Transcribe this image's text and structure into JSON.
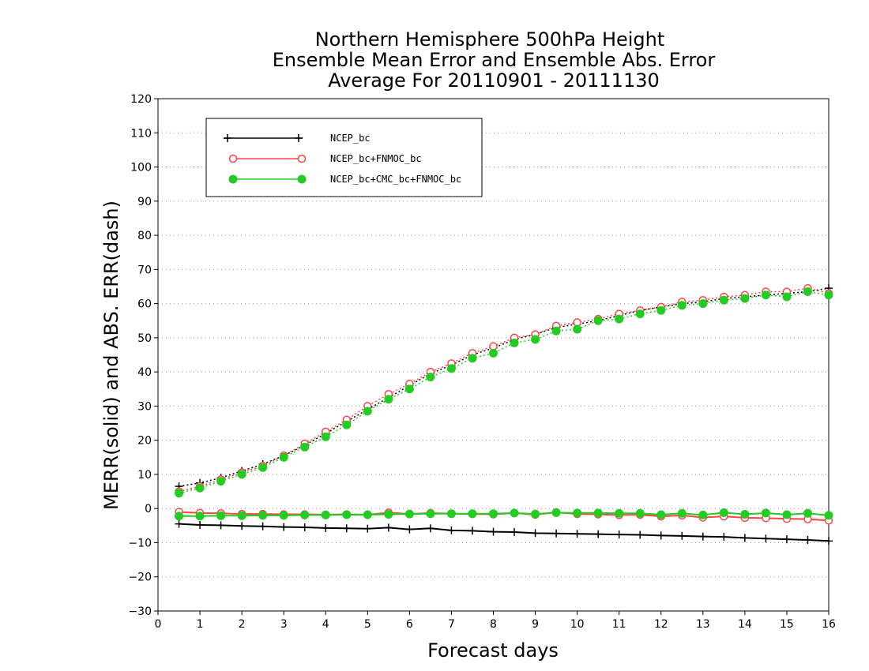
{
  "chart_data": {
    "type": "line",
    "title": [
      "Northern Hemisphere 500hPa Height",
      "Ensemble Mean Error and Ensemble Abs. Error",
      "Average For 20110901 - 20111130"
    ],
    "xlabel": "Forecast days",
    "ylabel": "MERR(solid) and ABS. ERR(dash)",
    "xlim": [
      0,
      16
    ],
    "ylim": [
      -30,
      120
    ],
    "xticks": [
      "0",
      "1",
      "2",
      "3",
      "4",
      "5",
      "6",
      "7",
      "8",
      "9",
      "10",
      "11",
      "12",
      "13",
      "14",
      "15",
      "16"
    ],
    "yticks": [
      "120",
      "110",
      "100",
      "90",
      "80",
      "70",
      "60",
      "50",
      "40",
      "30",
      "20",
      "10",
      "0",
      "−10",
      "−20",
      "−30"
    ],
    "grid": true,
    "legend_position": "top-left",
    "x": [
      0.5,
      1,
      1.5,
      2,
      2.5,
      3,
      3.5,
      4,
      4.5,
      5,
      5.5,
      6,
      6.5,
      7,
      7.5,
      8,
      8.5,
      9,
      9.5,
      10,
      10.5,
      11,
      11.5,
      12,
      12.5,
      13,
      13.5,
      14,
      14.5,
      15,
      15.5,
      16
    ],
    "series": [
      {
        "name": "NCEP_bc",
        "color": "#000000",
        "marker": "plus",
        "merr": [
          -4.5,
          -4.8,
          -4.9,
          -5.1,
          -5.2,
          -5.4,
          -5.5,
          -5.7,
          -5.8,
          -5.9,
          -5.6,
          -6.1,
          -5.8,
          -6.4,
          -6.5,
          -6.8,
          -6.9,
          -7.2,
          -7.3,
          -7.4,
          -7.5,
          -7.6,
          -7.7,
          -7.9,
          -8.0,
          -8.2,
          -8.3,
          -8.6,
          -8.8,
          -9.0,
          -9.2,
          -9.5
        ],
        "abs_err": [
          6.5,
          7.5,
          9.0,
          11.0,
          13.0,
          15.5,
          18.5,
          22.0,
          25.5,
          29.0,
          32.5,
          36.0,
          39.5,
          42.0,
          45.0,
          47.0,
          49.5,
          51.0,
          53.0,
          54.0,
          55.0,
          56.5,
          58.0,
          59.0,
          60.0,
          60.5,
          61.5,
          62.0,
          62.5,
          63.0,
          63.5,
          64.5
        ]
      },
      {
        "name": "NCEP_bc+FNMOC_bc",
        "color": "#ff4444",
        "marker": "open-circle",
        "merr": [
          -1.0,
          -1.3,
          -1.4,
          -1.6,
          -1.6,
          -1.7,
          -1.7,
          -1.8,
          -1.7,
          -1.8,
          -1.2,
          -1.6,
          -1.3,
          -1.5,
          -1.6,
          -1.7,
          -1.3,
          -1.8,
          -1.1,
          -1.6,
          -1.7,
          -1.9,
          -1.8,
          -2.3,
          -2.0,
          -2.6,
          -2.3,
          -2.7,
          -2.8,
          -3.0,
          -3.1,
          -3.5
        ],
        "abs_err": [
          5.0,
          6.5,
          8.5,
          10.5,
          12.5,
          15.5,
          19.0,
          22.5,
          26.0,
          30.0,
          33.5,
          36.5,
          40.0,
          42.5,
          45.5,
          47.5,
          50.0,
          51.0,
          53.5,
          54.5,
          55.5,
          57.0,
          58.0,
          59.0,
          60.5,
          61.0,
          62.0,
          62.5,
          63.5,
          63.5,
          64.5,
          63.0
        ]
      },
      {
        "name": "NCEP_bc+CMC_bc+FNMOC_bc",
        "color": "#22cc22",
        "marker": "filled-circle",
        "merr": [
          -2.2,
          -2.2,
          -2.1,
          -2.1,
          -2.0,
          -2.0,
          -1.9,
          -1.9,
          -1.8,
          -1.8,
          -1.7,
          -1.6,
          -1.5,
          -1.5,
          -1.5,
          -1.5,
          -1.3,
          -1.6,
          -1.2,
          -1.3,
          -1.3,
          -1.4,
          -1.4,
          -1.8,
          -1.4,
          -1.9,
          -1.2,
          -1.7,
          -1.3,
          -1.8,
          -1.4,
          -2.0
        ],
        "abs_err": [
          4.5,
          6.0,
          8.0,
          10.0,
          12.0,
          15.0,
          18.0,
          21.0,
          24.5,
          28.5,
          32.0,
          35.0,
          38.5,
          41.0,
          44.0,
          45.5,
          48.5,
          49.5,
          52.0,
          52.5,
          55.0,
          55.5,
          57.0,
          58.0,
          59.5,
          60.0,
          61.0,
          61.5,
          62.5,
          62.0,
          63.5,
          62.5
        ]
      }
    ]
  }
}
